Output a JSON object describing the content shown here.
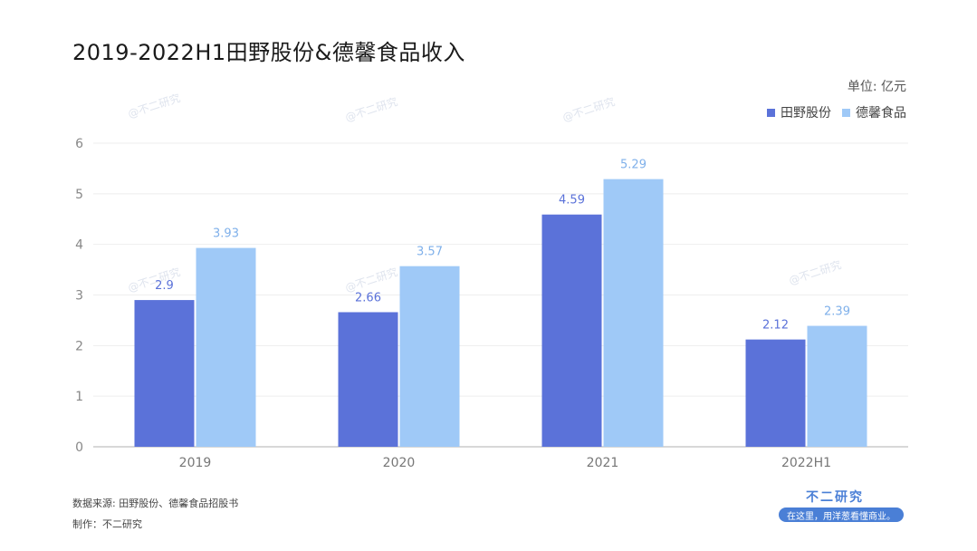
{
  "title": "2019-2022H1田野股份&德馨食品收入",
  "unit_label": "单位: 亿元",
  "colors": {
    "series_a": "#5b72d9",
    "series_b": "#9fc9f7"
  },
  "chart_data": {
    "type": "bar",
    "categories": [
      "2019",
      "2020",
      "2021",
      "2022H1"
    ],
    "series": [
      {
        "name": "田野股份",
        "values": [
          2.9,
          2.66,
          4.59,
          2.12
        ],
        "labels": [
          "2.9",
          "2.66",
          "4.59",
          "2.12"
        ]
      },
      {
        "name": "德馨食品",
        "values": [
          3.93,
          3.57,
          5.29,
          2.39
        ],
        "labels": [
          "3.93",
          "3.57",
          "5.29",
          "2.39"
        ]
      }
    ],
    "ylim": [
      0,
      6
    ],
    "yticks": [
      "0",
      "1",
      "2",
      "3",
      "4",
      "5",
      "6"
    ],
    "grid": true,
    "legend_position": "top-right"
  },
  "footer": {
    "source": "数据来源: 田野股份、德馨食品招股书",
    "maker": "制作：不二研究"
  },
  "logo": {
    "name": "不二研究",
    "slogan": "在这里，用洋葱看懂商业。"
  },
  "watermark": "@不二研究"
}
